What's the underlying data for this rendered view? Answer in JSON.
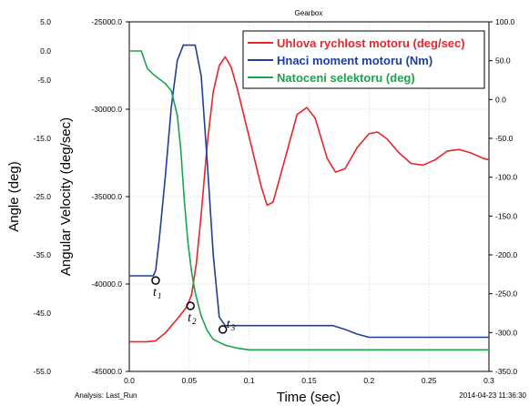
{
  "chart_data": {
    "type": "line",
    "title": "Gearbox",
    "xlabel": "Time (sec)",
    "ylabel_outer_left": "Angle (deg)",
    "ylabel_inner_left": "Angular Velocity (deg/sec)",
    "footer_left": "Analysis:  Last_Run",
    "footer_right": "2014-04-23 11:36:30",
    "xlim": [
      0,
      0.3
    ],
    "x_ticks": [
      "0.0",
      "0.05",
      "0.1",
      "0.15",
      "0.2",
      "0.25",
      "0.3"
    ],
    "axes": {
      "angle": {
        "lim": [
          -55,
          5
        ],
        "ticks": [
          "5.0",
          "0.0",
          "-5.0",
          "-15.0",
          "-25.0",
          "-35.0",
          "-45.0",
          "-55.0"
        ]
      },
      "velocity": {
        "lim": [
          -45000,
          -25000
        ],
        "ticks": [
          "-25000.0",
          "-30000.0",
          "-35000.0",
          "-40000.0",
          "-45000.0"
        ]
      },
      "torque": {
        "lim": [
          -350,
          100
        ],
        "ticks": [
          "100.0",
          "50.0",
          "0.0",
          "-50.0",
          "-100.0",
          "-150.0",
          "-200.0",
          "-250.0",
          "-300.0",
          "-350.0"
        ]
      }
    },
    "grid": true,
    "legend_position": "top-right",
    "series": [
      {
        "name": "Uhlova rychlost motoru (deg/sec)",
        "color": "#e8242d",
        "axis": "velocity",
        "x": [
          0,
          0.015,
          0.022,
          0.03,
          0.04,
          0.048,
          0.052,
          0.056,
          0.06,
          0.065,
          0.07,
          0.075,
          0.08,
          0.085,
          0.09,
          0.1,
          0.11,
          0.115,
          0.12,
          0.13,
          0.14,
          0.148,
          0.155,
          0.165,
          0.172,
          0.18,
          0.19,
          0.2,
          0.207,
          0.215,
          0.225,
          0.235,
          0.245,
          0.255,
          0.265,
          0.275,
          0.285,
          0.295,
          0.3
        ],
        "y": [
          -43300,
          -43300,
          -43250,
          -42800,
          -42000,
          -41300,
          -40600,
          -38800,
          -36000,
          -32000,
          -29000,
          -27500,
          -27000,
          -27600,
          -28800,
          -31600,
          -34400,
          -35500,
          -35300,
          -32800,
          -30300,
          -29900,
          -30500,
          -32800,
          -33600,
          -33400,
          -32200,
          -31400,
          -31300,
          -31700,
          -32500,
          -33100,
          -33200,
          -32900,
          -32400,
          -32300,
          -32500,
          -32800,
          -32900
        ]
      },
      {
        "name": "Hnaci moment motoru (Nm)",
        "color": "#1f3f9f",
        "axis": "torque",
        "x": [
          0,
          0.02,
          0.022,
          0.025,
          0.03,
          0.035,
          0.04,
          0.045,
          0.05,
          0.055,
          0.06,
          0.065,
          0.07,
          0.075,
          0.08,
          0.09,
          0.1,
          0.12,
          0.14,
          0.16,
          0.17,
          0.18,
          0.19,
          0.2,
          0.22,
          0.25,
          0.28,
          0.3
        ],
        "y": [
          -227,
          -227,
          -220,
          -180,
          -100,
          -10,
          50,
          70,
          70,
          70,
          30,
          -80,
          -200,
          -280,
          -291,
          -291,
          -291,
          -291,
          -291,
          -291,
          -291,
          -296,
          -302,
          -306,
          -306,
          -306,
          -306,
          -306
        ]
      },
      {
        "name": "Natoceni selektoru (deg)",
        "color": "#1aa44c",
        "axis": "angle",
        "x": [
          0,
          0.01,
          0.015,
          0.02,
          0.025,
          0.03,
          0.035,
          0.04,
          0.043,
          0.046,
          0.049,
          0.052,
          0.055,
          0.06,
          0.065,
          0.07,
          0.08,
          0.09,
          0.1,
          0.15,
          0.2,
          0.25,
          0.3
        ],
        "y": [
          0,
          0,
          -3,
          -4,
          -4.8,
          -5.6,
          -6.8,
          -11,
          -17,
          -26,
          -33,
          -38,
          -41.5,
          -45.5,
          -48,
          -49.5,
          -50.5,
          -51,
          -51.3,
          -51.3,
          -51.3,
          -51.3,
          -51.3
        ]
      }
    ],
    "annotations": [
      {
        "main": "t",
        "sub": "1",
        "x": 0.022,
        "y": -39800,
        "axis": "velocity"
      },
      {
        "main": "t",
        "sub": "2",
        "x": 0.051,
        "y": -41250,
        "axis": "velocity"
      },
      {
        "main": "t",
        "sub": "3",
        "x": 0.078,
        "y": -42600,
        "axis": "velocity"
      }
    ]
  }
}
